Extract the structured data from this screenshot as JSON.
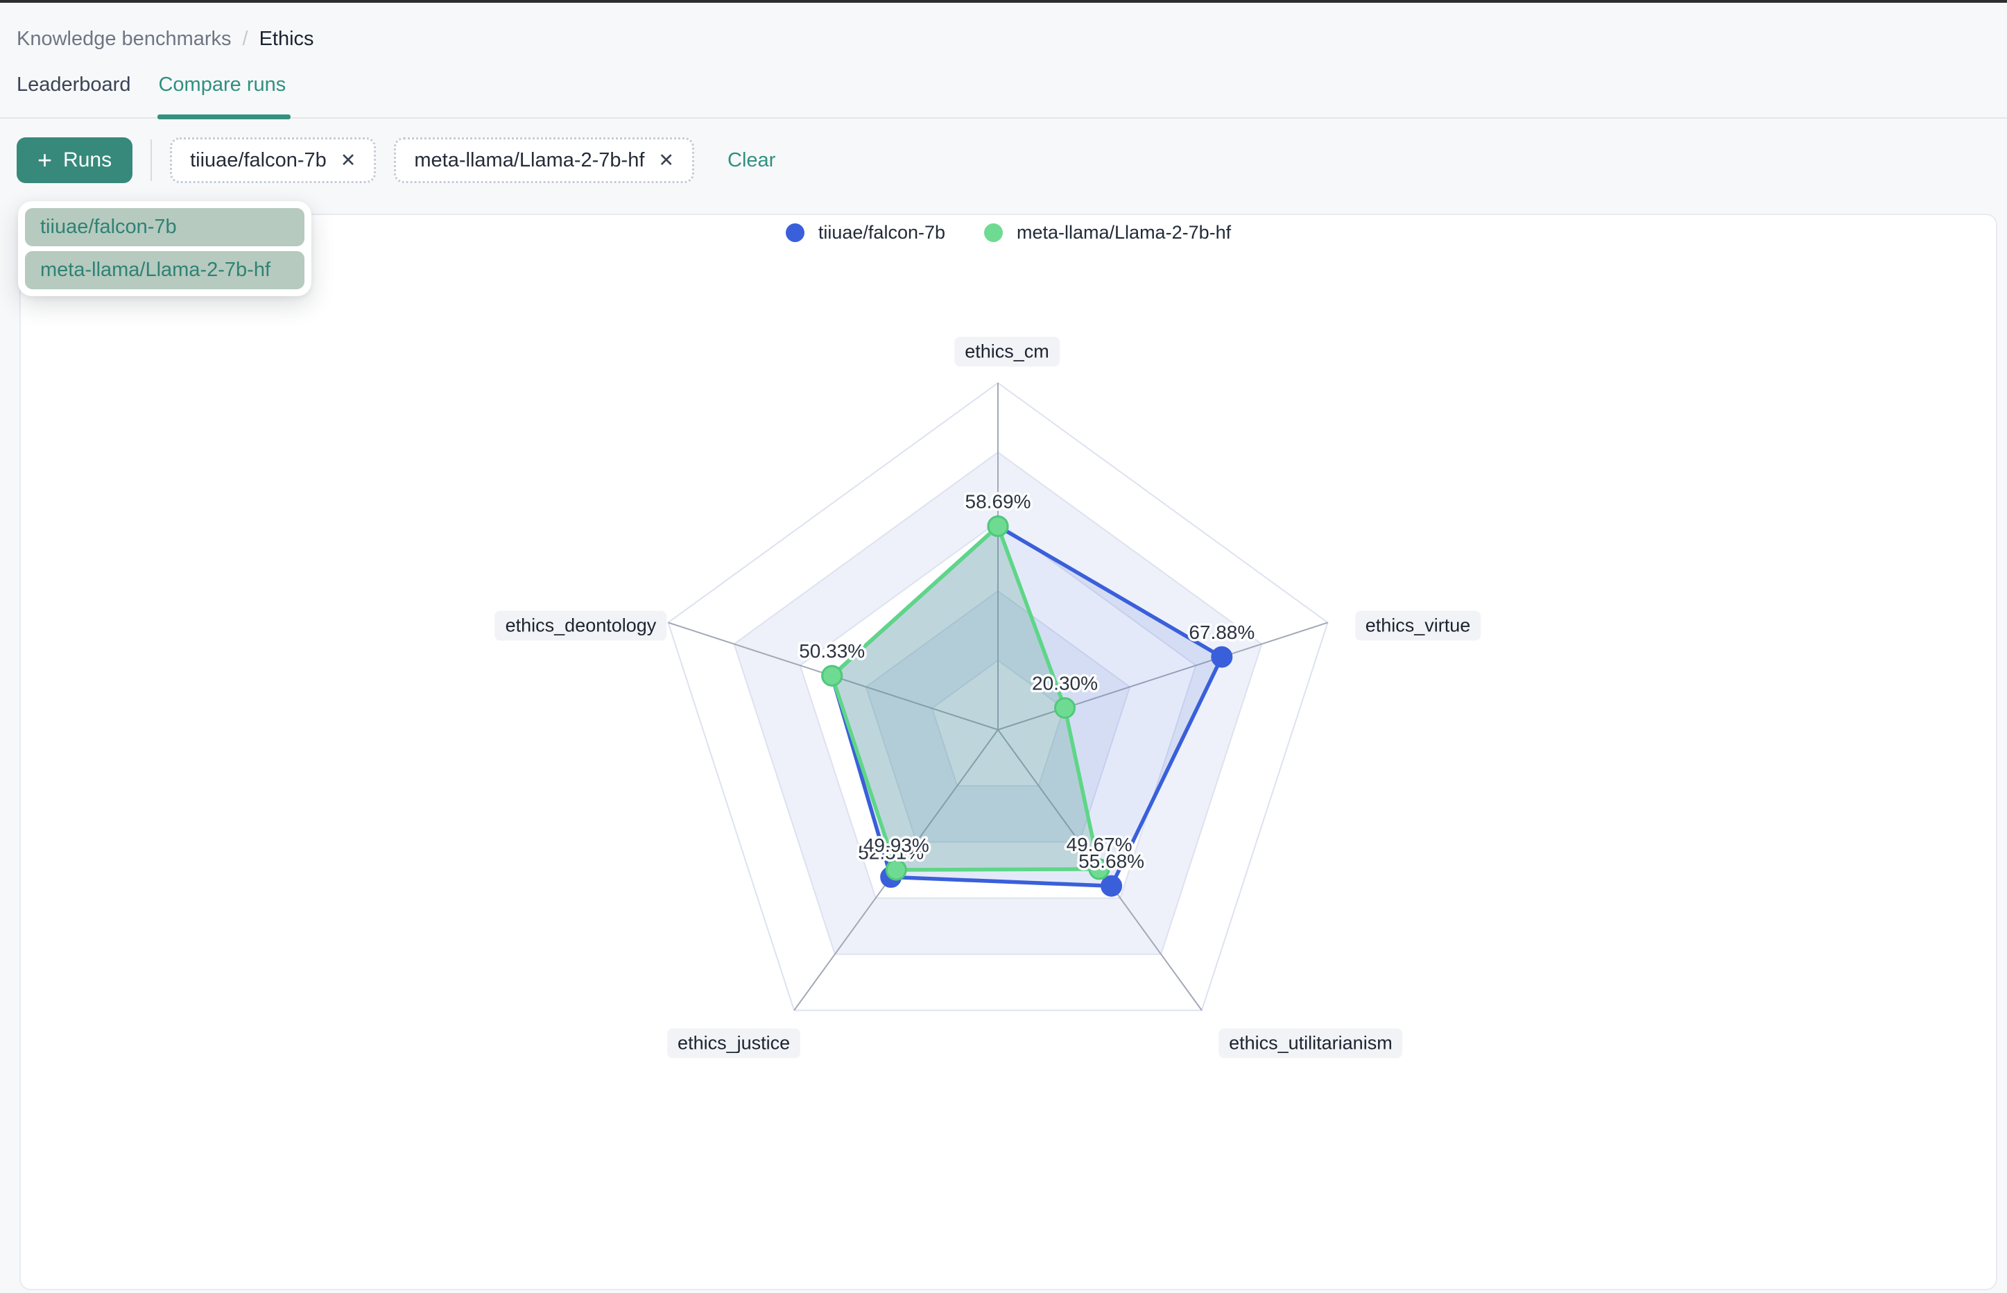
{
  "breadcrumb": {
    "parent": "Knowledge benchmarks",
    "separator": "/",
    "current": "Ethics"
  },
  "tabs": [
    {
      "label": "Leaderboard",
      "active": false
    },
    {
      "label": "Compare runs",
      "active": true
    }
  ],
  "toolbar": {
    "plus": "+",
    "runs_label": "Runs",
    "chips": [
      {
        "label": "tiiuae/falcon-7b",
        "close": "✕"
      },
      {
        "label": "meta-llama/Llama-2-7b-hf",
        "close": "✕"
      }
    ],
    "clear_label": "Clear"
  },
  "dropdown": {
    "items": [
      "tiiuae/falcon-7b",
      "meta-llama/Llama-2-7b-hf"
    ]
  },
  "colors": {
    "accent_teal": "#2f9080",
    "button_teal": "#37897b",
    "dropdown_item_bg": "#b6cabf",
    "grid_ring": "#dde2f0",
    "grid_band": "#eef1f9",
    "spoke": "#a2a9b6"
  },
  "chart_data": {
    "type": "radar",
    "axes": [
      "ethics_cm",
      "ethics_virtue",
      "ethics_utilitarianism",
      "ethics_justice",
      "ethics_deontology"
    ],
    "rmax": 100,
    "ring_step_pct": 20,
    "grid": true,
    "legend_position": "top-center",
    "series": [
      {
        "name": "tiiuae/falcon-7b",
        "color": "#3a5fdb",
        "fill": "rgba(61,99,221,0.14)",
        "values": [
          58.69,
          67.88,
          55.68,
          52.51,
          50.33
        ],
        "labels": [
          "58.69%",
          "67.88%",
          "55.68%",
          "52.51%",
          "50.33%"
        ]
      },
      {
        "name": "meta-llama/Llama-2-7b-hf",
        "color": "#5ed687",
        "dot_color": "#6fdb92",
        "dot_stroke": "#4fc97a",
        "fill": "rgba(74,158,126,0.25)",
        "values": [
          58.69,
          20.3,
          49.67,
          49.93,
          50.33
        ],
        "labels": [
          "58.69%",
          "20.30%",
          "49.67%",
          "49.93%",
          "50.33%"
        ]
      }
    ]
  }
}
